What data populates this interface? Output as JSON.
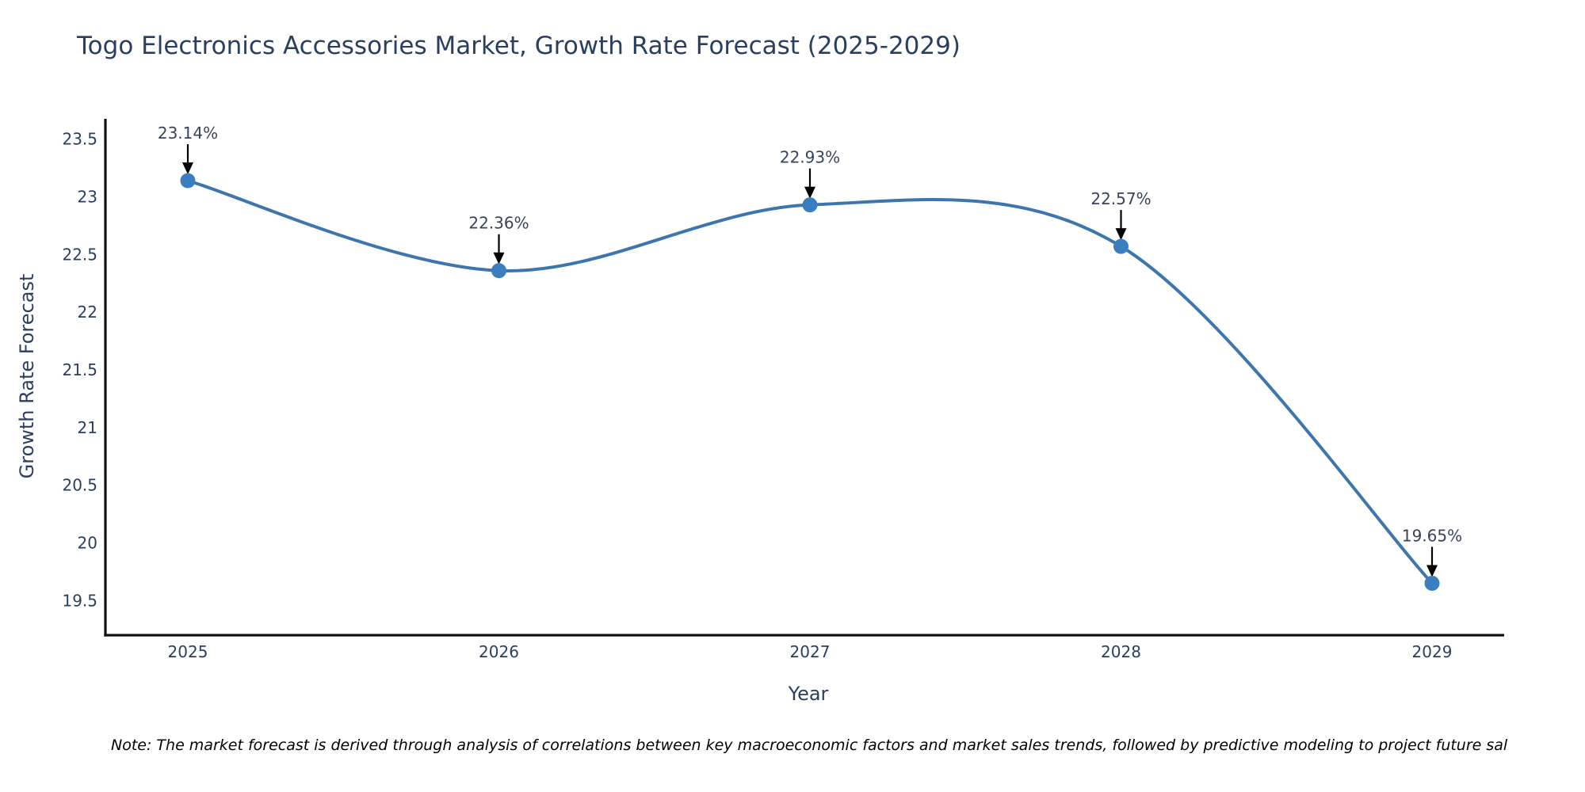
{
  "title": "Togo Electronics Accessories Market, Growth Rate Forecast (2025-2029)",
  "note": "Note: The market forecast is derived through analysis of correlations between key macroeconomic factors and market sales trends, followed by predictive modeling to project future sal",
  "colors": {
    "heading_text": "#2a3f5f",
    "tick_text": "#2a3f5f",
    "annotation_text": "#37445a",
    "axis_line": "#111111",
    "series_line": "#3c76ad",
    "marker_fill": "#3b7ec0",
    "arrow": "#000000",
    "note_text": "#000000",
    "background": "#ffffff"
  },
  "chart_data": {
    "type": "line",
    "title": "Togo Electronics Accessories Market, Growth Rate Forecast (2025-2029)",
    "xlabel": "Year",
    "ylabel": "Growth Rate Forecast",
    "x": [
      2025,
      2026,
      2027,
      2028,
      2029
    ],
    "y": [
      23.14,
      22.36,
      22.93,
      22.57,
      19.65
    ],
    "point_labels": [
      "23.14%",
      "22.36%",
      "22.93%",
      "22.57%",
      "19.65%"
    ],
    "xtick_labels": [
      "2025",
      "2026",
      "2027",
      "2028",
      "2029"
    ],
    "ytick_values": [
      19.5,
      20,
      20.5,
      21,
      21.5,
      22,
      22.5,
      23,
      23.5
    ],
    "ytick_labels": [
      "19.5",
      "20",
      "20.5",
      "21",
      "21.5",
      "22",
      "22.5",
      "23",
      "23.5"
    ],
    "ylim": [
      19.2,
      23.69
    ],
    "line_shape": "spline",
    "grid": false,
    "legend": "none",
    "annotations_style": "value label with down arrow to each marker"
  }
}
